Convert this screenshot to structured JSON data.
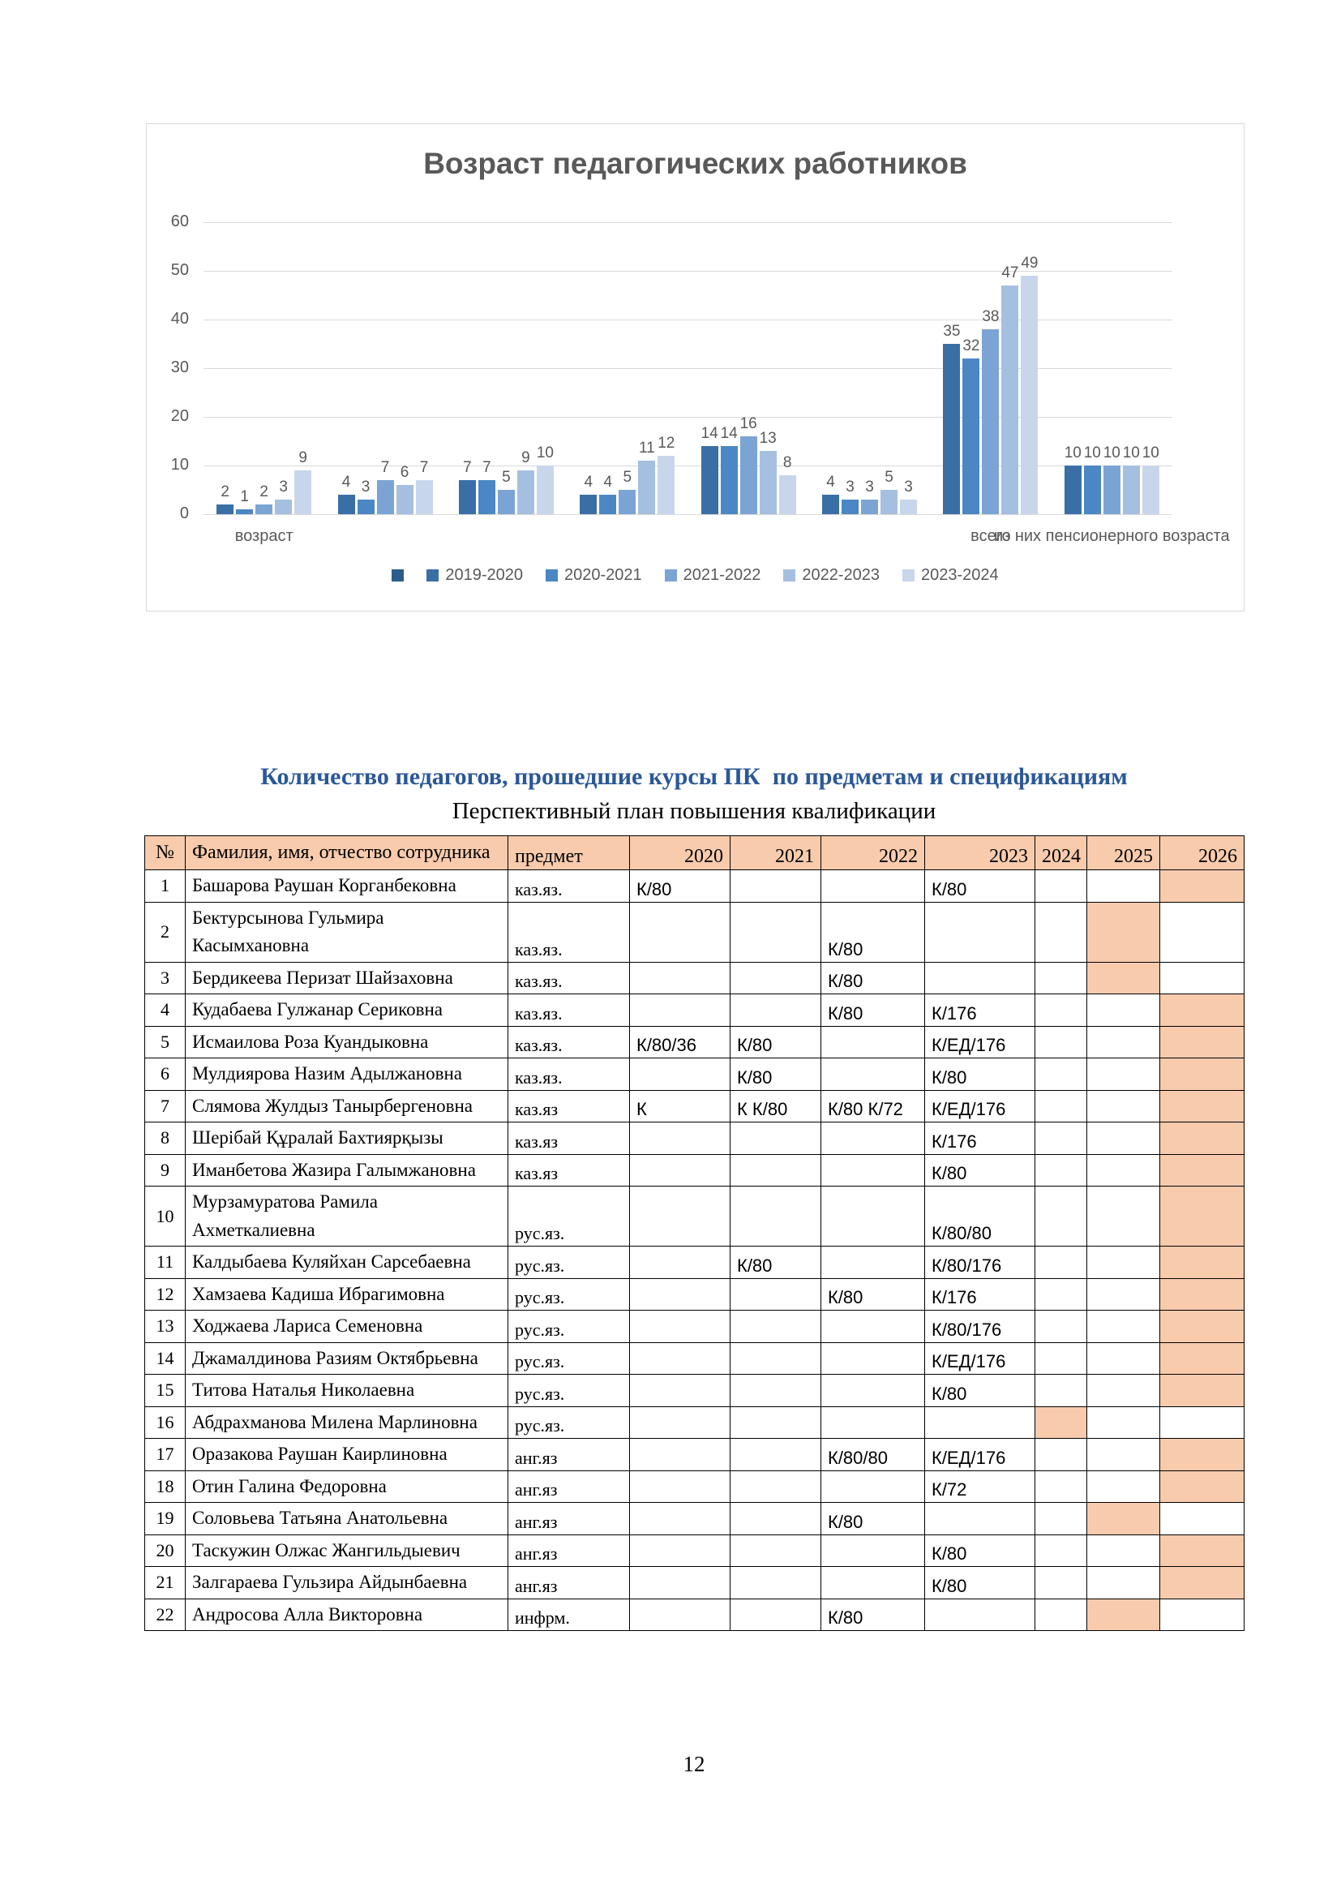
{
  "chart_data": {
    "type": "bar",
    "title": "Возраст педагогических работников",
    "categories": [
      "возраст",
      "",
      "",
      "",
      "",
      "",
      "всего",
      "из них пенсионерного возраста"
    ],
    "series": [
      {
        "name": "",
        "color": "#2c5d8a",
        "values": []
      },
      {
        "name": "2019-2020",
        "color": "#3a6fa6",
        "values": [
          2,
          4,
          7,
          4,
          14,
          4,
          35,
          10
        ]
      },
      {
        "name": "2020-2021",
        "color": "#4b87c4",
        "values": [
          1,
          3,
          7,
          4,
          14,
          3,
          32,
          10
        ]
      },
      {
        "name": "2021-2022",
        "color": "#7ba4d4",
        "values": [
          2,
          7,
          5,
          5,
          16,
          3,
          38,
          10
        ]
      },
      {
        "name": "2022-2023",
        "color": "#a5bfe0",
        "values": [
          3,
          6,
          9,
          11,
          13,
          5,
          47,
          10
        ]
      },
      {
        "name": "2023-2024",
        "color": "#c8d6ec",
        "values": [
          9,
          7,
          10,
          12,
          8,
          3,
          49,
          10
        ]
      }
    ],
    "ylim": [
      0,
      60
    ],
    "yticks": [
      0,
      10,
      20,
      30,
      40,
      50,
      60
    ],
    "grid": true,
    "legend_position": "bottom"
  },
  "titles": {
    "main": "Количество педагогов, прошедшие курсы ПК  по предметам и спецификациям",
    "sub": "Перспективный план повышения квалификации"
  },
  "table": {
    "headers": [
      "№",
      "Фамилия, имя, отчество сотрудника",
      "предмет",
      "2020",
      "2021",
      "2022",
      "2023",
      "2024",
      "2025",
      "2026"
    ],
    "rows": [
      {
        "n": "1",
        "name": "Башарова Раушан Корганбековна",
        "subject": "каз.яз.",
        "y2020": "К/80",
        "y2021": "",
        "y2022": "",
        "y2023": "К/80",
        "y2024": "",
        "y2025": "",
        "y2026": "",
        "shaded": "y2026"
      },
      {
        "n": "2",
        "name": "Бектурсынова Гульмира Касымхановна",
        "subject": "каз.яз.",
        "y2020": "",
        "y2021": "",
        "y2022": "К/80",
        "y2023": "",
        "y2024": "",
        "y2025": "",
        "y2026": "",
        "shaded": "y2025"
      },
      {
        "n": "3",
        "name": "Бердикеева Перизат Шайзаховна",
        "subject": "каз.яз.",
        "y2020": "",
        "y2021": "",
        "y2022": "К/80",
        "y2023": "",
        "y2024": "",
        "y2025": "",
        "y2026": "",
        "shaded": "y2025"
      },
      {
        "n": "4",
        "name": "Кудабаева Гулжанар Сериковна",
        "subject": "каз.яз.",
        "y2020": "",
        "y2021": "",
        "y2022": "К/80",
        "y2023": "К/176",
        "y2024": "",
        "y2025": "",
        "y2026": "",
        "shaded": "y2026"
      },
      {
        "n": "5",
        "name": "Исмаилова Роза Куандыковна",
        "subject": "каз.яз.",
        "y2020": "К/80/36",
        "y2021": "К/80",
        "y2022": "",
        "y2023": "К/ЕД/176",
        "y2024": "",
        "y2025": "",
        "y2026": "",
        "shaded": "y2026"
      },
      {
        "n": "6",
        "name": "Мулдиярова Назим Адылжановна",
        "subject": "каз.яз.",
        "y2020": "",
        "y2021": "К/80",
        "y2022": "",
        "y2023": "К/80",
        "y2024": "",
        "y2025": "",
        "y2026": "",
        "shaded": "y2026"
      },
      {
        "n": "7",
        "name": "Слямова Жулдыз Танырбергеновна",
        "subject": "каз.яз",
        "y2020": "К",
        "y2021": "К К/80",
        "y2022": "К/80 К/72",
        "y2023": "К/ЕД/176",
        "y2024": "",
        "y2025": "",
        "y2026": "",
        "shaded": "y2026"
      },
      {
        "n": "8",
        "name": "Шерібай Құралай Бахтиярқызы",
        "subject": "каз.яз",
        "y2020": "",
        "y2021": "",
        "y2022": "",
        "y2023": "К/176",
        "y2024": "",
        "y2025": "",
        "y2026": "",
        "shaded": "y2026"
      },
      {
        "n": "9",
        "name": "Иманбетова Жазира Галымжановна",
        "subject": "каз.яз",
        "y2020": "",
        "y2021": "",
        "y2022": "",
        "y2023": "К/80",
        "y2024": "",
        "y2025": "",
        "y2026": "",
        "shaded": "y2026"
      },
      {
        "n": "10",
        "name": "Мурзамуратова Рамила Ахметкалиевна",
        "subject": "рус.яз.",
        "y2020": "",
        "y2021": "",
        "y2022": "",
        "y2023": "К/80/80",
        "y2024": "",
        "y2025": "",
        "y2026": "",
        "shaded": "y2026"
      },
      {
        "n": "11",
        "name": "Калдыбаева Куляйхан Сарсебаевна",
        "subject": "рус.яз.",
        "y2020": "",
        "y2021": "К/80",
        "y2022": "",
        "y2023": "К/80/176",
        "y2024": "",
        "y2025": "",
        "y2026": "",
        "shaded": "y2026"
      },
      {
        "n": "12",
        "name": "Хамзаева Кадиша Ибрагимовна",
        "subject": "рус.яз.",
        "y2020": "",
        "y2021": "",
        "y2022": "К/80",
        "y2023": "К/176",
        "y2024": "",
        "y2025": "",
        "y2026": "",
        "shaded": "y2026"
      },
      {
        "n": "13",
        "name": "Ходжаева Лариса Семеновна",
        "subject": "рус.яз.",
        "y2020": "",
        "y2021": "",
        "y2022": "",
        "y2023": "К/80/176",
        "y2024": "",
        "y2025": "",
        "y2026": "",
        "shaded": "y2026"
      },
      {
        "n": "14",
        "name": "Джамалдинова Разиям Октябрьевна",
        "subject": "рус.яз.",
        "y2020": "",
        "y2021": "",
        "y2022": "",
        "y2023": "К/ЕД/176",
        "y2024": "",
        "y2025": "",
        "y2026": "",
        "shaded": "y2026"
      },
      {
        "n": "15",
        "name": "Титова Наталья Николаевна",
        "subject": "рус.яз.",
        "y2020": "",
        "y2021": "",
        "y2022": "",
        "y2023": "К/80",
        "y2024": "",
        "y2025": "",
        "y2026": "",
        "shaded": "y2026"
      },
      {
        "n": "16",
        "name": "Абдрахманова Милена Марлиновна",
        "subject": "рус.яз.",
        "y2020": "",
        "y2021": "",
        "y2022": "",
        "y2023": "",
        "y2024": "",
        "y2025": "",
        "y2026": "",
        "shaded": "y2024"
      },
      {
        "n": "17",
        "name": "Оразакова Раушан Каирлиновна",
        "subject": "анг.яз",
        "y2020": "",
        "y2021": "",
        "y2022": "К/80/80",
        "y2023": "К/ЕД/176",
        "y2024": "",
        "y2025": "",
        "y2026": "",
        "shaded": "y2026"
      },
      {
        "n": "18",
        "name": "Отин Галина Федоровна",
        "subject": "анг.яз",
        "y2020": "",
        "y2021": "",
        "y2022": "",
        "y2023": "К/72",
        "y2024": "",
        "y2025": "",
        "y2026": "",
        "shaded": "y2026"
      },
      {
        "n": "19",
        "name": "Соловьева Татьяна Анатольевна",
        "subject": "анг.яз",
        "y2020": "",
        "y2021": "",
        "y2022": "К/80",
        "y2023": "",
        "y2024": "",
        "y2025": "",
        "y2026": "",
        "shaded": "y2025"
      },
      {
        "n": "20",
        "name": "Таскужин Олжас Жангильдыевич",
        "subject": "анг.яз",
        "y2020": "",
        "y2021": "",
        "y2022": "",
        "y2023": "К/80",
        "y2024": "",
        "y2025": "",
        "y2026": "",
        "shaded": "y2026"
      },
      {
        "n": "21",
        "name": "Залгараева Гульзира Айдынбаевна",
        "subject": "анг.яз",
        "y2020": "",
        "y2021": "",
        "y2022": "",
        "y2023": "К/80",
        "y2024": "",
        "y2025": "",
        "y2026": "",
        "shaded": "y2026"
      },
      {
        "n": "22",
        "name": "Андросова Алла Викторовна",
        "subject": "инфрм.",
        "y2020": "",
        "y2021": "",
        "y2022": "К/80",
        "y2023": "",
        "y2024": "",
        "y2025": "",
        "y2026": "",
        "shaded": "y2025"
      }
    ]
  },
  "page": {
    "number": "12"
  }
}
